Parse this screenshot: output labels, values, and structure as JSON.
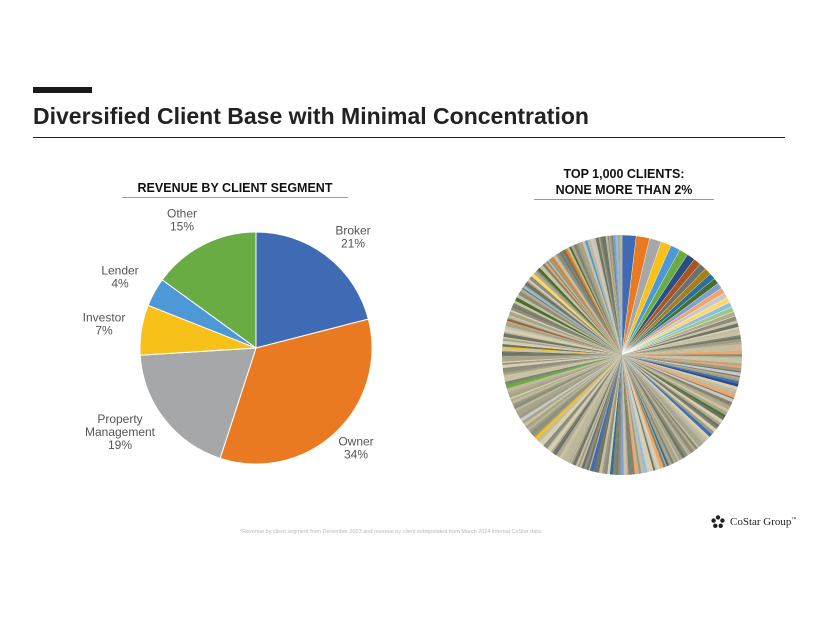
{
  "page": {
    "title": "Diversified Client Base with Minimal Concentration",
    "footnote": "*Revenue by client segment from December 2023 and revenue by client extrapolated from March 2024 internal CoStar data.",
    "logo_text": "CoStar Group",
    "logo_tm": "™"
  },
  "chart_data": [
    {
      "type": "pie",
      "title": "REVENUE  BY CLIENT SEGMENT",
      "categories": [
        "Broker",
        "Owner",
        "Property Management",
        "Investor",
        "Lender",
        "Other"
      ],
      "label_lines": [
        [
          "Broker",
          "21%"
        ],
        [
          "Owner",
          "34%"
        ],
        [
          "Property",
          "Management",
          "19%"
        ],
        [
          "Investor",
          "7%"
        ],
        [
          "Lender",
          "4%"
        ],
        [
          "Other",
          "15%"
        ]
      ],
      "values": [
        21,
        34,
        19,
        7,
        4,
        15
      ],
      "colors": [
        "#3e6bb3",
        "#e97a22",
        "#a5a7a9",
        "#f7c11a",
        "#4d98d6",
        "#6aac44"
      ],
      "start": "12 o'clock, clockwise"
    },
    {
      "type": "pie",
      "title_lines": [
        "TOP 1,000 CLIENTS:",
        "NONE MORE THAN 2%"
      ],
      "description": "Top 1,000 clients, each at most 2% of revenue",
      "largest_slices_pct": [
        1.9,
        1.8,
        1.6,
        1.4,
        1.3,
        1.2,
        1.1,
        1.0,
        0.95,
        0.9,
        0.85,
        0.8,
        0.78,
        0.75,
        0.72,
        0.7,
        0.68,
        0.66,
        0.64,
        0.62
      ],
      "colors": [
        "#3e6bb3",
        "#e97a22",
        "#a5a7a9",
        "#f7c11a",
        "#4d98d6",
        "#6aac44",
        "#2a4d85",
        "#a9551c",
        "#6d6f71",
        "#a37f14",
        "#2f6d9c",
        "#456f2d",
        "#7d9fd2",
        "#f0a56a",
        "#c8c9ca",
        "#fad86b",
        "#8fbde4",
        "#9cc988",
        "#b3a98b",
        "#8c8d7c",
        "#c9c2a4",
        "#6e7466",
        "#d6cfb2"
      ]
    }
  ]
}
